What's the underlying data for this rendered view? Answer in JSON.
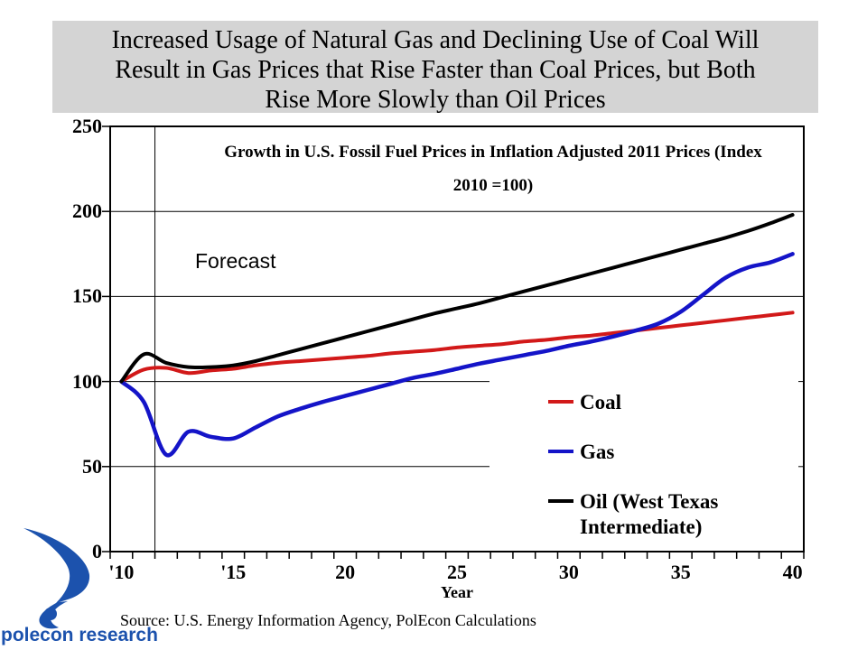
{
  "slide": {
    "banner_bg": "#d4d4d4",
    "title_lines": [
      "Increased Usage of Natural Gas and Declining Use of Coal Will",
      "Result in Gas Prices that Rise Faster than Coal Prices, but Both",
      "Rise More Slowly than Oil Prices"
    ],
    "source": "Source: U.S. Energy Information Agency, PolEcon Calculations",
    "logo_text": "polecon research",
    "logo_color": "#1c52ad"
  },
  "chart_data": {
    "type": "line",
    "title": "Growth in U.S. Fossil Fuel Prices in Inflation Adjusted 2011 Prices (Index 2010 =100)",
    "title_lines": [
      "Growth in U.S. Fossil Fuel Prices in Inflation Adjusted 2011 Prices (Index",
      "2010 =100)"
    ],
    "xlabel": "Year",
    "ylabel": "",
    "ylim": [
      0,
      250
    ],
    "y_ticks": [
      0,
      50,
      100,
      150,
      200,
      250
    ],
    "x_tick_labels": [
      {
        "year": 2010,
        "label": "'10"
      },
      {
        "year": 2015,
        "label": "'15"
      },
      {
        "year": 2020,
        "label": "20"
      },
      {
        "year": 2025,
        "label": "25"
      },
      {
        "year": 2030,
        "label": "30"
      },
      {
        "year": 2035,
        "label": "35"
      },
      {
        "year": 2040,
        "label": "40"
      }
    ],
    "annotation": {
      "label": "Forecast",
      "history_end_year": 2011
    },
    "years": [
      2010,
      2011,
      2012,
      2013,
      2014,
      2015,
      2016,
      2017,
      2018,
      2019,
      2020,
      2021,
      2022,
      2023,
      2024,
      2025,
      2026,
      2027,
      2028,
      2029,
      2030,
      2031,
      2032,
      2033,
      2034,
      2035,
      2036,
      2037,
      2038,
      2039,
      2040
    ],
    "series": [
      {
        "name": "Coal",
        "color": "#d21919",
        "values": [
          100,
          107,
          108,
          105,
          106.5,
          107.5,
          109.5,
          111,
          112,
          113,
          114,
          115,
          116.5,
          117.5,
          118.5,
          120,
          121,
          122,
          123.5,
          124.5,
          126,
          127,
          128.5,
          130,
          131.5,
          133,
          134.5,
          136,
          137.5,
          139,
          140.5
        ]
      },
      {
        "name": "Gas",
        "color": "#1414c8",
        "values": [
          100,
          88,
          57,
          70.5,
          67.5,
          66.5,
          73,
          79.5,
          84,
          88,
          91.5,
          95,
          98.5,
          102,
          104.5,
          107.5,
          110.5,
          113,
          115.5,
          118,
          121,
          123.5,
          126.5,
          130,
          134,
          141,
          151,
          161,
          167,
          170,
          175
        ]
      },
      {
        "name": "Oil (West Texas Intermediate)",
        "color": "#000000",
        "values": [
          100,
          116,
          111,
          108.5,
          108.5,
          109.5,
          112,
          115.5,
          119,
          122.5,
          126,
          129.5,
          133,
          136.5,
          140,
          143,
          146,
          149.5,
          153,
          156.5,
          160,
          163.5,
          167,
          170.5,
          174,
          177.5,
          181,
          184.5,
          188.5,
          193,
          198
        ]
      }
    ],
    "legend": [
      {
        "label": "Coal",
        "color": "#d21919"
      },
      {
        "label": "Gas",
        "color": "#1414c8"
      },
      {
        "label": "Oil (West Texas",
        "label2": "Intermediate)",
        "color": "#000000"
      }
    ],
    "legend_position": "inside-right"
  }
}
